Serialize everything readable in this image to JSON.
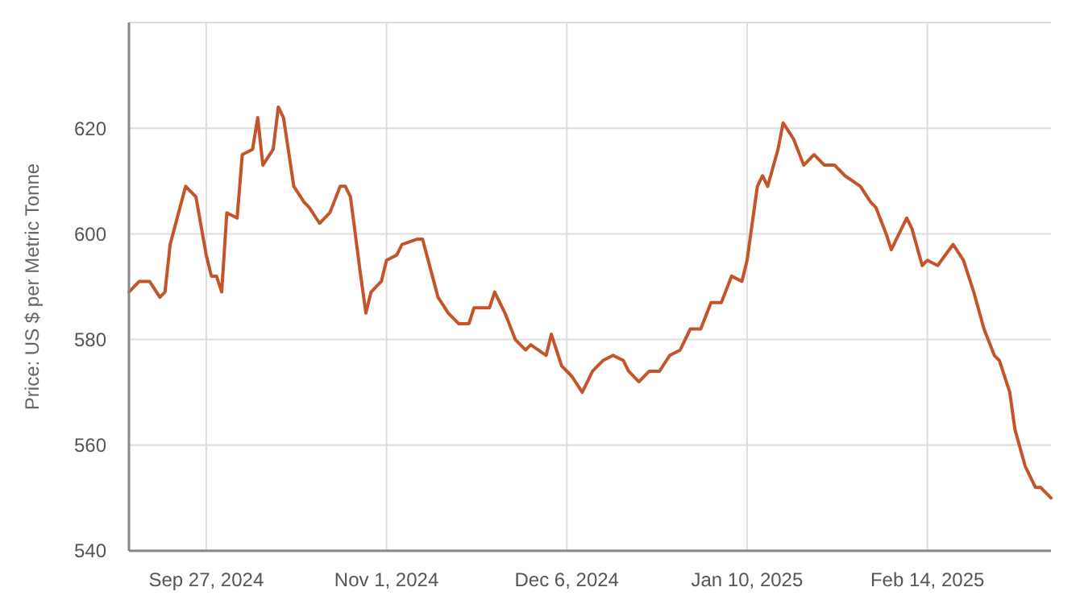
{
  "chart_data": {
    "type": "line",
    "ylabel": "Price: US $ per Metric Tonne",
    "x": [
      "2024-09-12",
      "2024-09-14",
      "2024-09-16",
      "2024-09-18",
      "2024-09-19",
      "2024-09-20",
      "2024-09-23",
      "2024-09-25",
      "2024-09-27",
      "2024-09-28",
      "2024-09-29",
      "2024-09-30",
      "2024-10-01",
      "2024-10-03",
      "2024-10-04",
      "2024-10-06",
      "2024-10-07",
      "2024-10-08",
      "2024-10-10",
      "2024-10-11",
      "2024-10-12",
      "2024-10-14",
      "2024-10-16",
      "2024-10-17",
      "2024-10-19",
      "2024-10-21",
      "2024-10-23",
      "2024-10-24",
      "2024-10-25",
      "2024-10-27",
      "2024-10-28",
      "2024-10-29",
      "2024-10-31",
      "2024-11-01",
      "2024-11-03",
      "2024-11-04",
      "2024-11-07",
      "2024-11-08",
      "2024-11-11",
      "2024-11-13",
      "2024-11-15",
      "2024-11-17",
      "2024-11-18",
      "2024-11-21",
      "2024-11-22",
      "2024-11-24",
      "2024-11-26",
      "2024-11-28",
      "2024-11-29",
      "2024-12-02",
      "2024-12-03",
      "2024-12-05",
      "2024-12-07",
      "2024-12-09",
      "2024-12-11",
      "2024-12-13",
      "2024-12-15",
      "2024-12-17",
      "2024-12-18",
      "2024-12-20",
      "2024-12-22",
      "2024-12-24",
      "2024-12-26",
      "2024-12-28",
      "2024-12-30",
      "2025-01-01",
      "2025-01-03",
      "2025-01-05",
      "2025-01-07",
      "2025-01-09",
      "2025-01-10",
      "2025-01-12",
      "2025-01-13",
      "2025-01-14",
      "2025-01-16",
      "2025-01-17",
      "2025-01-19",
      "2025-01-21",
      "2025-01-23",
      "2025-01-25",
      "2025-01-27",
      "2025-01-29",
      "2025-02-01",
      "2025-02-03",
      "2025-02-04",
      "2025-02-06",
      "2025-02-07",
      "2025-02-08",
      "2025-02-10",
      "2025-02-11",
      "2025-02-13",
      "2025-02-14",
      "2025-02-16",
      "2025-02-19",
      "2025-02-21",
      "2025-02-23",
      "2025-02-25",
      "2025-02-27",
      "2025-02-28",
      "2025-03-02",
      "2025-03-03",
      "2025-03-05",
      "2025-03-07",
      "2025-03-08",
      "2025-03-10"
    ],
    "series": [
      {
        "color": "#c4552b",
        "values": [
          589,
          591,
          591,
          588,
          589,
          598,
          609,
          607,
          596,
          592,
          592,
          589,
          604,
          603,
          615,
          616,
          622,
          613,
          616,
          624,
          622,
          609,
          606,
          605,
          602,
          604,
          609,
          609,
          607,
          592,
          585,
          589,
          591,
          595,
          596,
          598,
          599,
          599,
          588,
          585,
          583,
          583,
          586,
          586,
          589,
          585,
          580,
          578,
          579,
          577,
          581,
          575,
          573,
          570,
          574,
          576,
          577,
          576,
          574,
          572,
          574,
          574,
          577,
          578,
          582,
          582,
          587,
          587,
          592,
          591,
          595,
          609,
          611,
          609,
          616,
          621,
          618,
          613,
          615,
          613,
          613,
          611,
          609,
          606,
          605,
          600,
          597,
          599,
          603,
          601,
          594,
          595,
          594,
          598,
          595,
          589,
          582,
          577,
          576,
          570,
          563,
          556,
          552,
          552,
          550
        ]
      }
    ],
    "xlim": [
      "2024-09-12",
      "2025-03-10"
    ],
    "xticks": [
      {
        "value": "2024-09-27",
        "label": "Sep 27, 2024"
      },
      {
        "value": "2024-11-01",
        "label": "Nov 1, 2024"
      },
      {
        "value": "2024-12-06",
        "label": "Dec 6, 2024"
      },
      {
        "value": "2025-01-10",
        "label": "Jan 10, 2025"
      },
      {
        "value": "2025-02-14",
        "label": "Feb 14, 2025"
      }
    ],
    "ylim": [
      540,
      640
    ],
    "yticks": [
      540,
      560,
      580,
      600,
      620
    ],
    "grid": true,
    "marker": "none",
    "line_style": "solid"
  }
}
